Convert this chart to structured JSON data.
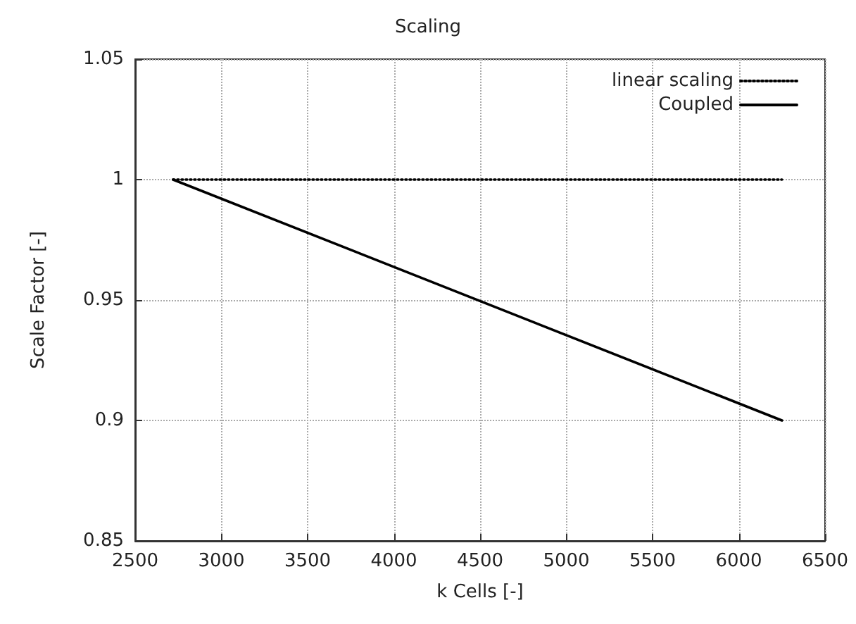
{
  "chart_data": {
    "type": "line",
    "title": "Scaling",
    "xlabel": "k Cells [-]",
    "ylabel": "Scale Factor [-]",
    "x": [
      2720,
      6250
    ],
    "xlim": [
      2500,
      6500
    ],
    "xticks": [
      2500,
      3000,
      3500,
      4000,
      4500,
      5000,
      5500,
      6000,
      6500
    ],
    "ylim": [
      0.85,
      1.05
    ],
    "yticks": [
      0.85,
      0.9,
      0.95,
      1,
      1.05
    ],
    "grid": true,
    "legend": "top right",
    "marker": "none",
    "series": [
      {
        "name": "linear scaling",
        "color": "#000000",
        "line_style": "dotted",
        "values": [
          1,
          1
        ]
      },
      {
        "name": "Coupled",
        "color": "#000000",
        "line_style": "solid",
        "values": [
          1,
          0.9
        ]
      }
    ]
  }
}
